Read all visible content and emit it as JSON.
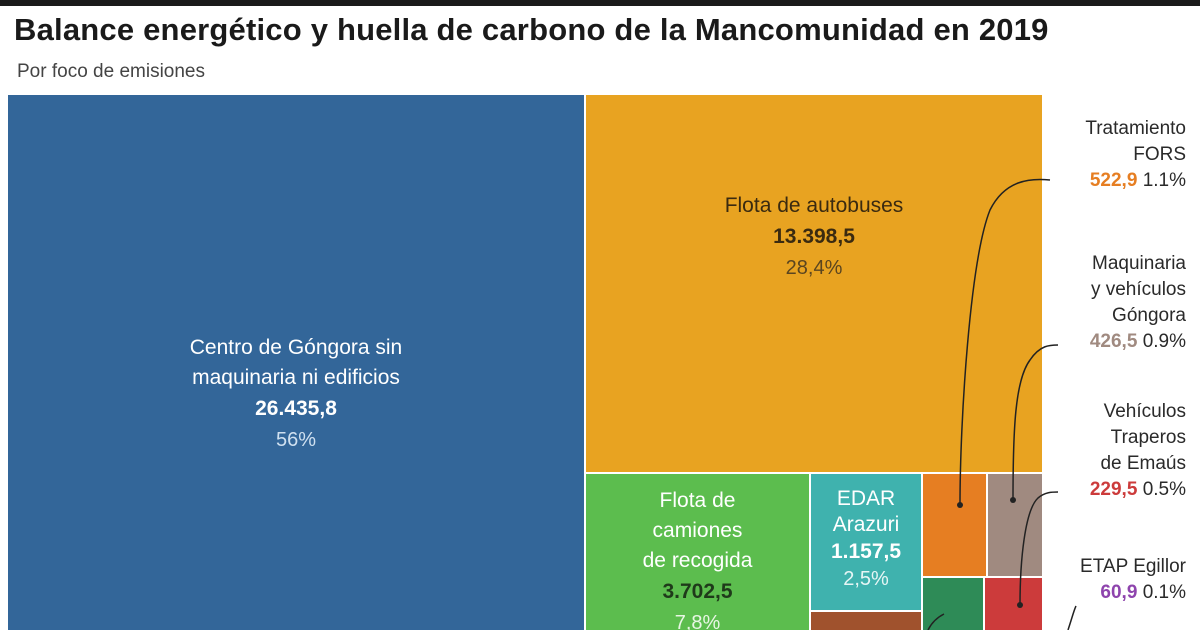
{
  "title": "Balance energético y huella de carbono de la Mancomunidad en 2019",
  "subtitle": "Por foco de emisiones",
  "chart_data": {
    "type": "treemap",
    "title": "Balance energético y huella de carbono de la Mancomunidad en 2019",
    "subtitle": "Por foco de emisiones",
    "series": [
      {
        "name": "Centro de Góngora sin maquinaria ni edificios",
        "value_label": "26.435,8",
        "value": 26435.8,
        "pct_label": "56%",
        "color": "#336699"
      },
      {
        "name": "Flota de autobuses",
        "value_label": "13.398,5",
        "value": 13398.5,
        "pct_label": "28,4%",
        "color": "#e8a321"
      },
      {
        "name": "Flota de camiones de recogida",
        "value_label": "3.702,5",
        "value": 3702.5,
        "pct_label": "7,8%",
        "color": "#5cbd4e"
      },
      {
        "name": "EDAR Arazuri",
        "value_label": "1.157,5",
        "value": 1157.5,
        "pct_label": "2,5%",
        "color": "#3fb2ae"
      },
      {
        "name": "Tratamiento FORS",
        "value_label": "522,9",
        "value": 522.9,
        "pct_label": "1.1%",
        "color": "#e67e22",
        "label_color": "#e67e22"
      },
      {
        "name": "Maquinaria y vehículos Góngora",
        "value_label": "426,5",
        "value": 426.5,
        "pct_label": "0.9%",
        "color": "#a08a80",
        "label_color": "#a08a80"
      },
      {
        "name": "Vehículos Traperos de Emaús",
        "value_label": "229,5",
        "value": 229.5,
        "pct_label": "0.5%",
        "color": "#cc3b3b",
        "label_color": "#cc3b3b"
      },
      {
        "name": "ETAP Egillor",
        "value_label": "60,9",
        "value": 60.9,
        "pct_label": "0.1%",
        "color": "#8e44ad",
        "label_color": "#8e44ad"
      }
    ],
    "unlabeled_tiles": [
      {
        "color": "#2e8b57"
      },
      {
        "color": "#a0522d"
      }
    ]
  },
  "tiles": {
    "centro": {
      "name_line1": "Centro de Góngora sin",
      "name_line2": "maquinaria ni edificios",
      "value": "26.435,8",
      "pct": "56%"
    },
    "autobuses": {
      "name": "Flota de autobuses",
      "value": "13.398,5",
      "pct": "28,4%"
    },
    "camiones": {
      "name_line1": "Flota de",
      "name_line2": "camiones",
      "name_line3": "de recogida",
      "value": "3.702,5",
      "pct": "7,8%"
    },
    "edar": {
      "name_line1": "EDAR",
      "name_line2": "Arazuri",
      "value": "1.157,5",
      "pct": "2,5%"
    }
  },
  "side_labels": {
    "fors": {
      "line1": "Tratamiento",
      "line2": "FORS",
      "value": "522,9",
      "pct": "1.1%"
    },
    "maquinaria": {
      "line1": "Maquinaria",
      "line2": "y vehículos",
      "line3": "Góngora",
      "value": "426,5",
      "pct": "0.9%"
    },
    "traperos": {
      "line1": "Vehículos",
      "line2": "Traperos",
      "line3": "de Emaús",
      "value": "229,5",
      "pct": "0.5%"
    },
    "etap": {
      "line1": "ETAP Egillor",
      "value": "60,9",
      "pct": "0.1%"
    }
  }
}
